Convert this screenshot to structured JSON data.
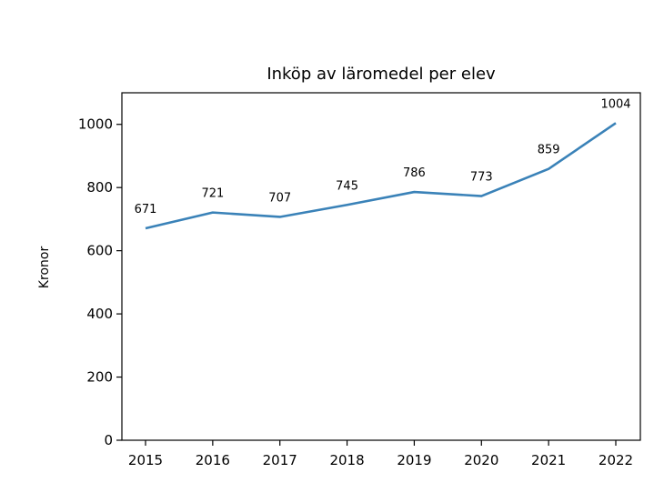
{
  "chart_data": {
    "type": "line",
    "title": "Inköp av läromedel per elev",
    "xlabel": "",
    "ylabel": "Kronor",
    "categories": [
      "2015",
      "2016",
      "2017",
      "2018",
      "2019",
      "2020",
      "2021",
      "2022"
    ],
    "values": [
      671,
      721,
      707,
      745,
      786,
      773,
      859,
      1004
    ],
    "data_labels": [
      "671",
      "721",
      "707",
      "745",
      "786",
      "773",
      "859",
      "1004"
    ],
    "ylim": [
      0,
      1100
    ],
    "yticks": [
      0,
      200,
      400,
      600,
      800,
      1000
    ],
    "ytick_labels": [
      "0",
      "200",
      "400",
      "600",
      "800",
      "1000"
    ],
    "grid": false,
    "legend": "none",
    "line_color": "#3a82b8"
  }
}
